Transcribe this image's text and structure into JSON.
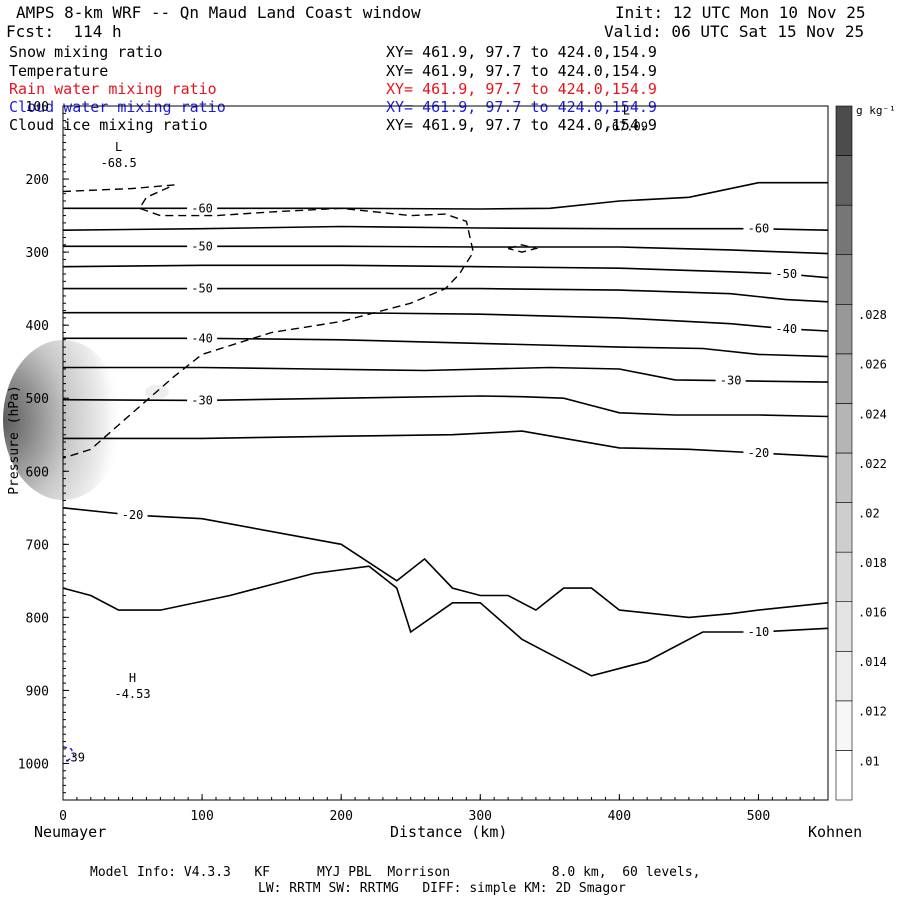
{
  "header": {
    "title": "AMPS 8-km WRF -- Qn Maud Land Coast window",
    "init": "Init: 12 UTC Mon 10 Nov 25",
    "fcst": "Fcst:  114 h",
    "valid": "Valid: 06 UTC Sat 15 Nov 25"
  },
  "fields": [
    {
      "name": "Snow mixing ratio",
      "xy": "XY= 461.9, 97.7 to 424.0,154.9",
      "color": "#000000"
    },
    {
      "name": "Temperature",
      "xy": "XY= 461.9, 97.7 to 424.0,154.9",
      "color": "#000000"
    },
    {
      "name": "Rain water mixing ratio",
      "xy": "XY= 461.9, 97.7 to 424.0,154.9",
      "color": "#e8141c"
    },
    {
      "name": "Cloud water mixing ratio",
      "xy": "XY= 461.9, 97.7 to 424.0,154.9",
      "color": "#1c1ce0"
    },
    {
      "name": "Cloud ice mixing ratio",
      "xy": "XY= 461.9, 97.7 to 424.0,154.9",
      "color": "#000000"
    }
  ],
  "footer": {
    "line1": "Model Info: V4.3.3   KF      MYJ PBL  Morrison             8.0 km,  60 levels,",
    "line2": "LW: RRTM SW: RRTMG   DIFF: simple KM: 2D Smagor"
  },
  "chart_data": {
    "type": "contour",
    "xlabel": "Distance (km)",
    "ylabel": "Pressure (hPa)",
    "xlim": [
      0,
      550
    ],
    "ylim": [
      1050,
      100
    ],
    "x_ticks": [
      0,
      100,
      200,
      300,
      400,
      500
    ],
    "y_ticks": [
      100,
      200,
      300,
      400,
      500,
      600,
      700,
      800,
      900,
      1000
    ],
    "left_location": "Neumayer",
    "right_location": "Kohnen",
    "colorbar": {
      "unit": "g kg⁻¹",
      "ticks": [
        ".01",
        ".012",
        ".014",
        ".016",
        ".018",
        ".02",
        ".022",
        ".024",
        ".026",
        ".028"
      ],
      "shades": [
        "#ffffff",
        "#f7f7f7",
        "#eeeeee",
        "#e4e4e4",
        "#d9d9d9",
        "#cecece",
        "#c2c2c2",
        "#b5b5b5",
        "#a7a7a7",
        "#989898",
        "#888888",
        "#767676",
        "#626262",
        "#4c4c4c"
      ]
    },
    "temperature_contours": [
      {
        "value": -60,
        "label": "-60",
        "points": [
          [
            0,
            240
          ],
          [
            100,
            240
          ],
          [
            200,
            240
          ],
          [
            300,
            241
          ],
          [
            350,
            240
          ],
          [
            400,
            230
          ],
          [
            450,
            225
          ],
          [
            500,
            205
          ],
          [
            550,
            205
          ]
        ]
      },
      {
        "value": -60,
        "label": "-60",
        "points": [
          [
            0,
            270
          ],
          [
            100,
            268
          ],
          [
            200,
            265
          ],
          [
            300,
            267
          ],
          [
            400,
            268
          ],
          [
            500,
            268
          ],
          [
            550,
            270
          ]
        ]
      },
      {
        "value": -50,
        "label": "-50",
        "points": [
          [
            0,
            292
          ],
          [
            100,
            292
          ],
          [
            200,
            292
          ],
          [
            300,
            293
          ],
          [
            400,
            293
          ],
          [
            480,
            297
          ],
          [
            520,
            300
          ],
          [
            550,
            302
          ]
        ]
      },
      {
        "value": -50,
        "label": "-50",
        "points": [
          [
            0,
            320
          ],
          [
            100,
            318
          ],
          [
            200,
            318
          ],
          [
            300,
            320
          ],
          [
            400,
            322
          ],
          [
            480,
            327
          ],
          [
            520,
            330
          ],
          [
            550,
            335
          ]
        ]
      },
      {
        "value": -50,
        "label": "-50",
        "points": [
          [
            0,
            350
          ],
          [
            100,
            350
          ],
          [
            200,
            350
          ],
          [
            300,
            350
          ],
          [
            400,
            352
          ],
          [
            480,
            357
          ],
          [
            520,
            365
          ],
          [
            550,
            368
          ]
        ]
      },
      {
        "value": -40,
        "label": "-40",
        "points": [
          [
            0,
            383
          ],
          [
            100,
            383
          ],
          [
            200,
            383
          ],
          [
            300,
            385
          ],
          [
            400,
            390
          ],
          [
            480,
            398
          ],
          [
            520,
            405
          ],
          [
            550,
            408
          ]
        ]
      },
      {
        "value": -40,
        "label": "-40",
        "points": [
          [
            0,
            418
          ],
          [
            100,
            418
          ],
          [
            200,
            420
          ],
          [
            300,
            425
          ],
          [
            400,
            430
          ],
          [
            460,
            432
          ],
          [
            500,
            440
          ],
          [
            550,
            443
          ]
        ]
      },
      {
        "value": -30,
        "label": "-30",
        "points": [
          [
            0,
            458
          ],
          [
            100,
            458
          ],
          [
            180,
            460
          ],
          [
            260,
            462
          ],
          [
            350,
            458
          ],
          [
            400,
            460
          ],
          [
            440,
            475
          ],
          [
            480,
            476
          ],
          [
            550,
            478
          ]
        ]
      },
      {
        "value": -30,
        "label": "-30",
        "points": [
          [
            0,
            502
          ],
          [
            100,
            503
          ],
          [
            200,
            500
          ],
          [
            300,
            497
          ],
          [
            330,
            498
          ],
          [
            360,
            500
          ],
          [
            380,
            510
          ],
          [
            400,
            520
          ],
          [
            440,
            523
          ],
          [
            500,
            523
          ],
          [
            550,
            525
          ]
        ]
      },
      {
        "value": -20,
        "label": "-20",
        "points": [
          [
            0,
            555
          ],
          [
            100,
            555
          ],
          [
            200,
            552
          ],
          [
            280,
            550
          ],
          [
            330,
            545
          ],
          [
            400,
            568
          ],
          [
            450,
            570
          ],
          [
            500,
            575
          ],
          [
            550,
            580
          ]
        ]
      },
      {
        "value": -20,
        "label": "-20",
        "points": [
          [
            0,
            650
          ],
          [
            50,
            660
          ],
          [
            100,
            665
          ],
          [
            200,
            700
          ],
          [
            240,
            750
          ],
          [
            260,
            720
          ],
          [
            280,
            760
          ],
          [
            300,
            770
          ],
          [
            320,
            770
          ],
          [
            340,
            790
          ],
          [
            360,
            760
          ],
          [
            380,
            760
          ],
          [
            400,
            790
          ],
          [
            450,
            800
          ],
          [
            480,
            795
          ],
          [
            500,
            790
          ],
          [
            550,
            780
          ]
        ]
      },
      {
        "value": -10,
        "label": "-10",
        "points": [
          [
            0,
            760
          ],
          [
            20,
            770
          ],
          [
            40,
            790
          ],
          [
            70,
            790
          ],
          [
            120,
            770
          ],
          [
            180,
            740
          ],
          [
            220,
            730
          ],
          [
            240,
            760
          ],
          [
            250,
            820
          ],
          [
            280,
            780
          ],
          [
            300,
            780
          ],
          [
            330,
            830
          ],
          [
            350,
            850
          ],
          [
            380,
            880
          ],
          [
            420,
            860
          ],
          [
            460,
            820
          ],
          [
            500,
            820
          ],
          [
            550,
            815
          ]
        ]
      }
    ],
    "cloud_ice_labels": [
      "L -68.5",
      "L -67.09",
      "H -4.53"
    ],
    "cloud_water_label": ".39"
  }
}
